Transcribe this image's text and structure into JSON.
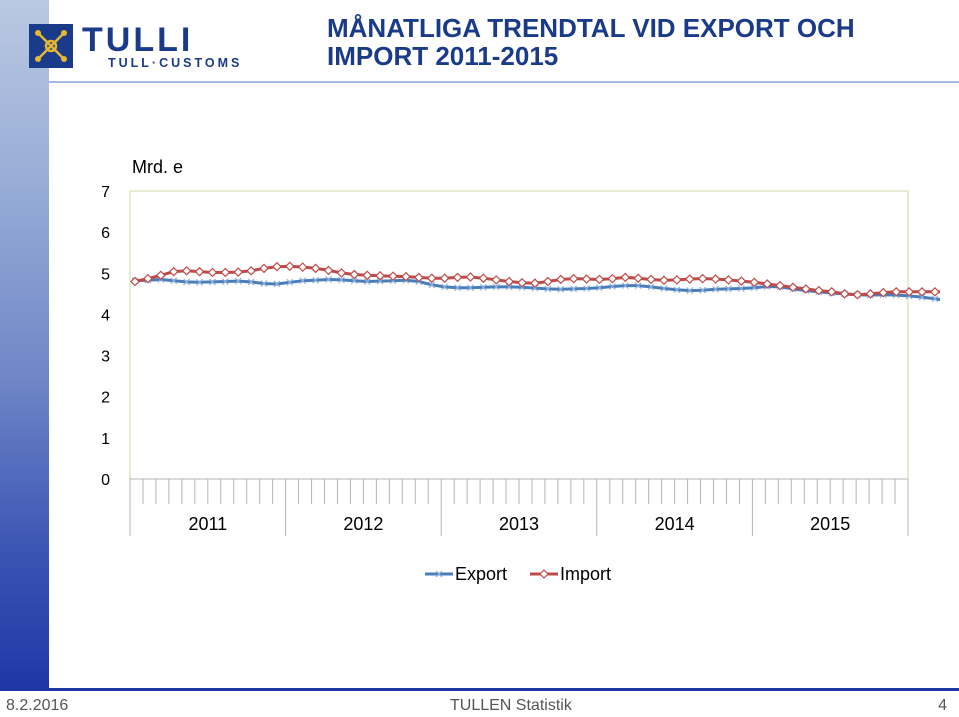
{
  "header": {
    "title": "MÅNATLIGA TRENDTAL VID EXPORT OCH IMPORT 2011-2015",
    "logo_text": "TULLI",
    "logo_subtext": "TULL·CUSTOMS"
  },
  "footer": {
    "date": "8.2.2016",
    "center": "TULLEN Statistik",
    "page": "4"
  },
  "colors": {
    "export": "#4a7ebb",
    "import": "#be4b48",
    "brand": "#1a3a8a"
  },
  "chart_data": {
    "type": "line",
    "unit_label": "Mrd. e",
    "ylim": [
      0,
      7
    ],
    "yticks": [
      0,
      1,
      2,
      3,
      4,
      5,
      6,
      7
    ],
    "x_year_labels": [
      "2011",
      "2012",
      "2013",
      "2014",
      "2015"
    ],
    "months_per_year": 12,
    "legend_position": "bottom",
    "grid": false,
    "series": [
      {
        "name": "Export",
        "color": "#4a7ebb",
        "marker": "x",
        "values": [
          4.82,
          4.83,
          4.85,
          4.82,
          4.79,
          4.78,
          4.79,
          4.8,
          4.81,
          4.79,
          4.75,
          4.74,
          4.78,
          4.82,
          4.83,
          4.85,
          4.84,
          4.82,
          4.8,
          4.81,
          4.82,
          4.83,
          4.8,
          4.72,
          4.67,
          4.65,
          4.65,
          4.66,
          4.67,
          4.67,
          4.66,
          4.64,
          4.62,
          4.61,
          4.62,
          4.63,
          4.65,
          4.68,
          4.7,
          4.7,
          4.67,
          4.63,
          4.6,
          4.58,
          4.59,
          4.61,
          4.62,
          4.63,
          4.65,
          4.68,
          4.67,
          4.62,
          4.58,
          4.55,
          4.52,
          4.5,
          4.48,
          4.47,
          4.48,
          4.47,
          4.45,
          4.42,
          4.38,
          4.34,
          4.31,
          4.28
        ]
      },
      {
        "name": "Import",
        "color": "#be4b48",
        "marker": "diamond",
        "values": [
          4.8,
          4.87,
          4.95,
          5.04,
          5.06,
          5.04,
          5.02,
          5.02,
          5.03,
          5.06,
          5.12,
          5.16,
          5.17,
          5.15,
          5.12,
          5.07,
          5.01,
          4.97,
          4.95,
          4.94,
          4.93,
          4.92,
          4.9,
          4.88,
          4.88,
          4.9,
          4.91,
          4.88,
          4.84,
          4.8,
          4.77,
          4.76,
          4.8,
          4.85,
          4.87,
          4.86,
          4.85,
          4.87,
          4.9,
          4.88,
          4.85,
          4.83,
          4.84,
          4.86,
          4.87,
          4.86,
          4.84,
          4.81,
          4.78,
          4.74,
          4.7,
          4.66,
          4.62,
          4.58,
          4.55,
          4.5,
          4.48,
          4.5,
          4.53,
          4.55,
          4.55,
          4.55,
          4.55,
          4.55,
          4.56,
          4.57
        ]
      }
    ]
  }
}
